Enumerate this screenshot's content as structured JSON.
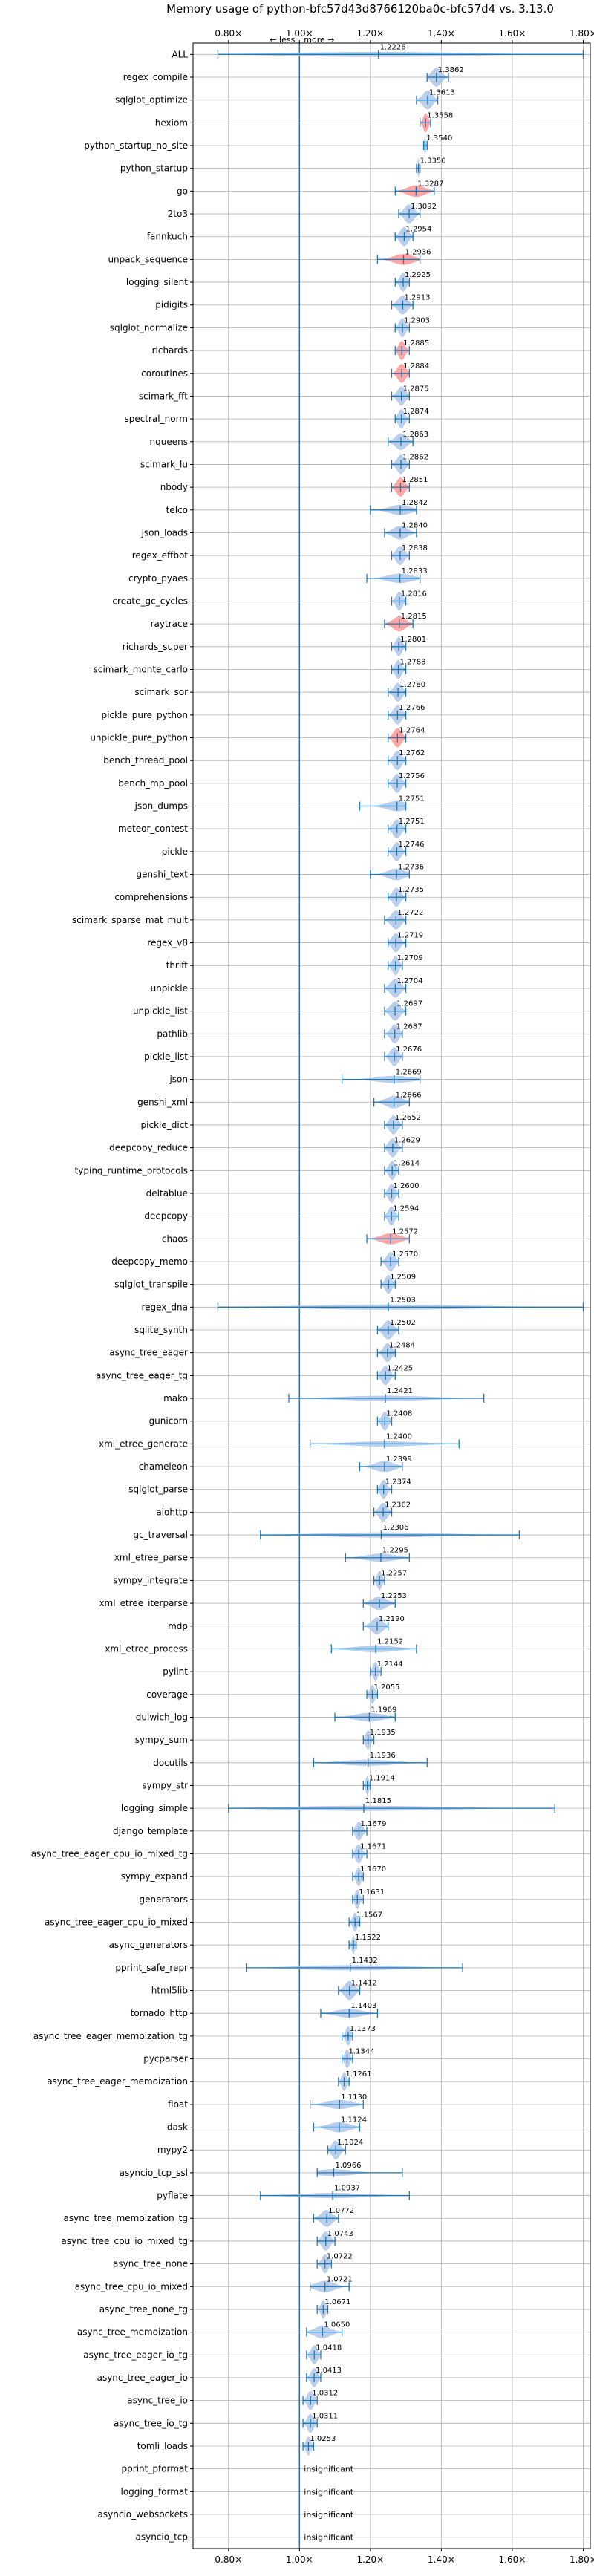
{
  "chart_data": {
    "type": "violin",
    "title": "Memory usage of python-bfc57d43d8766120ba0c-bfc57d4 vs. 3.13.0",
    "direction_labels": {
      "less": "← less",
      "more": "more →"
    },
    "xlim": [
      0.7,
      1.82
    ],
    "xticks": [
      0.8,
      1.0,
      1.2,
      1.4,
      1.6,
      1.8
    ],
    "xtick_labels": [
      "0.80×",
      "1.00×",
      "1.20×",
      "1.40×",
      "1.60×",
      "1.80×"
    ],
    "reference_line": 1.0,
    "grid": true,
    "colors": {
      "faster": "#aec7e8",
      "slower": "#ff9896",
      "line": "#1f77b4"
    },
    "benchmarks": [
      {
        "name": "ALL",
        "value": 1.2226,
        "label": "1.2226",
        "min": 0.77,
        "max": 1.8,
        "color": "blue"
      },
      {
        "name": "regex_compile",
        "value": 1.3862,
        "label": "1.3862",
        "min": 1.36,
        "max": 1.42,
        "color": "blue"
      },
      {
        "name": "sqlglot_optimize",
        "value": 1.3613,
        "label": "1.3613",
        "min": 1.33,
        "max": 1.39,
        "color": "blue"
      },
      {
        "name": "hexiom",
        "value": 1.3558,
        "label": "1.3558",
        "min": 1.34,
        "max": 1.37,
        "color": "red"
      },
      {
        "name": "python_startup_no_site",
        "value": 1.354,
        "label": "1.3540",
        "min": 1.35,
        "max": 1.36,
        "color": "blue"
      },
      {
        "name": "python_startup",
        "value": 1.3356,
        "label": "1.3356",
        "min": 1.33,
        "max": 1.34,
        "color": "blue"
      },
      {
        "name": "go",
        "value": 1.3287,
        "label": "1.3287",
        "min": 1.27,
        "max": 1.38,
        "color": "red"
      },
      {
        "name": "2to3",
        "value": 1.3092,
        "label": "1.3092",
        "min": 1.28,
        "max": 1.34,
        "color": "blue"
      },
      {
        "name": "fannkuch",
        "value": 1.2954,
        "label": "1.2954",
        "min": 1.27,
        "max": 1.32,
        "color": "blue"
      },
      {
        "name": "unpack_sequence",
        "value": 1.2936,
        "label": "1.2936",
        "min": 1.22,
        "max": 1.34,
        "color": "red"
      },
      {
        "name": "logging_silent",
        "value": 1.2925,
        "label": "1.2925",
        "min": 1.27,
        "max": 1.31,
        "color": "blue"
      },
      {
        "name": "pidigits",
        "value": 1.2913,
        "label": "1.2913",
        "min": 1.26,
        "max": 1.32,
        "color": "blue"
      },
      {
        "name": "sqlglot_normalize",
        "value": 1.2903,
        "label": "1.2903",
        "min": 1.27,
        "max": 1.31,
        "color": "blue"
      },
      {
        "name": "richards",
        "value": 1.2885,
        "label": "1.2885",
        "min": 1.27,
        "max": 1.31,
        "color": "red"
      },
      {
        "name": "coroutines",
        "value": 1.2884,
        "label": "1.2884",
        "min": 1.26,
        "max": 1.31,
        "color": "red"
      },
      {
        "name": "scimark_fft",
        "value": 1.2875,
        "label": "1.2875",
        "min": 1.26,
        "max": 1.31,
        "color": "blue"
      },
      {
        "name": "spectral_norm",
        "value": 1.2874,
        "label": "1.2874",
        "min": 1.27,
        "max": 1.31,
        "color": "blue"
      },
      {
        "name": "nqueens",
        "value": 1.2863,
        "label": "1.2863",
        "min": 1.25,
        "max": 1.32,
        "color": "blue"
      },
      {
        "name": "scimark_lu",
        "value": 1.2862,
        "label": "1.2862",
        "min": 1.26,
        "max": 1.31,
        "color": "blue"
      },
      {
        "name": "nbody",
        "value": 1.2851,
        "label": "1.2851",
        "min": 1.26,
        "max": 1.31,
        "color": "red"
      },
      {
        "name": "telco",
        "value": 1.2842,
        "label": "1.2842",
        "min": 1.2,
        "max": 1.33,
        "color": "blue"
      },
      {
        "name": "json_loads",
        "value": 1.284,
        "label": "1.2840",
        "min": 1.24,
        "max": 1.33,
        "color": "blue"
      },
      {
        "name": "regex_effbot",
        "value": 1.2838,
        "label": "1.2838",
        "min": 1.26,
        "max": 1.31,
        "color": "blue"
      },
      {
        "name": "crypto_pyaes",
        "value": 1.2833,
        "label": "1.2833",
        "min": 1.19,
        "max": 1.34,
        "color": "blue"
      },
      {
        "name": "create_gc_cycles",
        "value": 1.2816,
        "label": "1.2816",
        "min": 1.26,
        "max": 1.3,
        "color": "blue"
      },
      {
        "name": "raytrace",
        "value": 1.2815,
        "label": "1.2815",
        "min": 1.24,
        "max": 1.32,
        "color": "red"
      },
      {
        "name": "richards_super",
        "value": 1.2801,
        "label": "1.2801",
        "min": 1.26,
        "max": 1.3,
        "color": "blue"
      },
      {
        "name": "scimark_monte_carlo",
        "value": 1.2788,
        "label": "1.2788",
        "min": 1.26,
        "max": 1.3,
        "color": "blue"
      },
      {
        "name": "scimark_sor",
        "value": 1.278,
        "label": "1.2780",
        "min": 1.25,
        "max": 1.3,
        "color": "blue"
      },
      {
        "name": "pickle_pure_python",
        "value": 1.2766,
        "label": "1.2766",
        "min": 1.25,
        "max": 1.3,
        "color": "blue"
      },
      {
        "name": "unpickle_pure_python",
        "value": 1.2764,
        "label": "1.2764",
        "min": 1.25,
        "max": 1.3,
        "color": "red"
      },
      {
        "name": "bench_thread_pool",
        "value": 1.2762,
        "label": "1.2762",
        "min": 1.25,
        "max": 1.3,
        "color": "blue"
      },
      {
        "name": "bench_mp_pool",
        "value": 1.2756,
        "label": "1.2756",
        "min": 1.25,
        "max": 1.3,
        "color": "blue"
      },
      {
        "name": "json_dumps",
        "value": 1.2751,
        "label": "1.2751",
        "min": 1.17,
        "max": 1.3,
        "color": "blue"
      },
      {
        "name": "meteor_contest",
        "value": 1.2751,
        "label": "1.2751",
        "min": 1.25,
        "max": 1.3,
        "color": "blue"
      },
      {
        "name": "pickle",
        "value": 1.2746,
        "label": "1.2746",
        "min": 1.25,
        "max": 1.3,
        "color": "blue"
      },
      {
        "name": "genshi_text",
        "value": 1.2736,
        "label": "1.2736",
        "min": 1.2,
        "max": 1.31,
        "color": "blue"
      },
      {
        "name": "comprehensions",
        "value": 1.2735,
        "label": "1.2735",
        "min": 1.25,
        "max": 1.3,
        "color": "blue"
      },
      {
        "name": "scimark_sparse_mat_mult",
        "value": 1.2722,
        "label": "1.2722",
        "min": 1.24,
        "max": 1.3,
        "color": "blue"
      },
      {
        "name": "regex_v8",
        "value": 1.2719,
        "label": "1.2719",
        "min": 1.25,
        "max": 1.3,
        "color": "blue"
      },
      {
        "name": "thrift",
        "value": 1.2709,
        "label": "1.2709",
        "min": 1.25,
        "max": 1.29,
        "color": "blue"
      },
      {
        "name": "unpickle",
        "value": 1.2704,
        "label": "1.2704",
        "min": 1.24,
        "max": 1.3,
        "color": "blue"
      },
      {
        "name": "unpickle_list",
        "value": 1.2697,
        "label": "1.2697",
        "min": 1.24,
        "max": 1.3,
        "color": "blue"
      },
      {
        "name": "pathlib",
        "value": 1.2687,
        "label": "1.2687",
        "min": 1.24,
        "max": 1.29,
        "color": "blue"
      },
      {
        "name": "pickle_list",
        "value": 1.2676,
        "label": "1.2676",
        "min": 1.24,
        "max": 1.29,
        "color": "blue"
      },
      {
        "name": "json",
        "value": 1.2669,
        "label": "1.2669",
        "min": 1.12,
        "max": 1.34,
        "color": "blue"
      },
      {
        "name": "genshi_xml",
        "value": 1.2666,
        "label": "1.2666",
        "min": 1.21,
        "max": 1.31,
        "color": "blue"
      },
      {
        "name": "pickle_dict",
        "value": 1.2652,
        "label": "1.2652",
        "min": 1.24,
        "max": 1.29,
        "color": "blue"
      },
      {
        "name": "deepcopy_reduce",
        "value": 1.2629,
        "label": "1.2629",
        "min": 1.24,
        "max": 1.29,
        "color": "blue"
      },
      {
        "name": "typing_runtime_protocols",
        "value": 1.2614,
        "label": "1.2614",
        "min": 1.24,
        "max": 1.28,
        "color": "blue"
      },
      {
        "name": "deltablue",
        "value": 1.26,
        "label": "1.2600",
        "min": 1.24,
        "max": 1.28,
        "color": "blue"
      },
      {
        "name": "deepcopy",
        "value": 1.2594,
        "label": "1.2594",
        "min": 1.24,
        "max": 1.28,
        "color": "blue"
      },
      {
        "name": "chaos",
        "value": 1.2572,
        "label": "1.2572",
        "min": 1.19,
        "max": 1.31,
        "color": "red"
      },
      {
        "name": "deepcopy_memo",
        "value": 1.257,
        "label": "1.2570",
        "min": 1.23,
        "max": 1.28,
        "color": "blue"
      },
      {
        "name": "sqlglot_transpile",
        "value": 1.2509,
        "label": "1.2509",
        "min": 1.23,
        "max": 1.27,
        "color": "blue"
      },
      {
        "name": "regex_dna",
        "value": 1.2503,
        "label": "1.2503",
        "min": 0.77,
        "max": 1.8,
        "color": "blue"
      },
      {
        "name": "sqlite_synth",
        "value": 1.2502,
        "label": "1.2502",
        "min": 1.22,
        "max": 1.28,
        "color": "blue"
      },
      {
        "name": "async_tree_eager",
        "value": 1.2484,
        "label": "1.2484",
        "min": 1.22,
        "max": 1.27,
        "color": "blue"
      },
      {
        "name": "async_tree_eager_tg",
        "value": 1.2425,
        "label": "1.2425",
        "min": 1.22,
        "max": 1.27,
        "color": "blue"
      },
      {
        "name": "mako",
        "value": 1.2421,
        "label": "1.2421",
        "min": 0.97,
        "max": 1.52,
        "color": "blue"
      },
      {
        "name": "gunicorn",
        "value": 1.2408,
        "label": "1.2408",
        "min": 1.22,
        "max": 1.26,
        "color": "blue"
      },
      {
        "name": "xml_etree_generate",
        "value": 1.24,
        "label": "1.2400",
        "min": 1.03,
        "max": 1.45,
        "color": "blue"
      },
      {
        "name": "chameleon",
        "value": 1.2399,
        "label": "1.2399",
        "min": 1.17,
        "max": 1.29,
        "color": "blue"
      },
      {
        "name": "sqlglot_parse",
        "value": 1.2374,
        "label": "1.2374",
        "min": 1.22,
        "max": 1.26,
        "color": "blue"
      },
      {
        "name": "aiohttp",
        "value": 1.2362,
        "label": "1.2362",
        "min": 1.21,
        "max": 1.26,
        "color": "blue"
      },
      {
        "name": "gc_traversal",
        "value": 1.2306,
        "label": "1.2306",
        "min": 0.89,
        "max": 1.62,
        "color": "blue"
      },
      {
        "name": "xml_etree_parse",
        "value": 1.2295,
        "label": "1.2295",
        "min": 1.13,
        "max": 1.31,
        "color": "blue"
      },
      {
        "name": "sympy_integrate",
        "value": 1.2257,
        "label": "1.2257",
        "min": 1.21,
        "max": 1.24,
        "color": "blue"
      },
      {
        "name": "xml_etree_iterparse",
        "value": 1.2253,
        "label": "1.2253",
        "min": 1.18,
        "max": 1.27,
        "color": "blue"
      },
      {
        "name": "mdp",
        "value": 1.219,
        "label": "1.2190",
        "min": 1.18,
        "max": 1.25,
        "color": "blue"
      },
      {
        "name": "xml_etree_process",
        "value": 1.2152,
        "label": "1.2152",
        "min": 1.09,
        "max": 1.33,
        "color": "blue"
      },
      {
        "name": "pylint",
        "value": 1.2144,
        "label": "1.2144",
        "min": 1.2,
        "max": 1.23,
        "color": "blue"
      },
      {
        "name": "coverage",
        "value": 1.2055,
        "label": "1.2055",
        "min": 1.19,
        "max": 1.22,
        "color": "blue"
      },
      {
        "name": "dulwich_log",
        "value": 1.1969,
        "label": "1.1969",
        "min": 1.1,
        "max": 1.27,
        "color": "blue"
      },
      {
        "name": "sympy_sum",
        "value": 1.1935,
        "label": "1.1935",
        "min": 1.18,
        "max": 1.21,
        "color": "blue"
      },
      {
        "name": "docutils",
        "value": 1.1936,
        "label": "1.1936",
        "min": 1.04,
        "max": 1.36,
        "color": "blue"
      },
      {
        "name": "sympy_str",
        "value": 1.1914,
        "label": "1.1914",
        "min": 1.18,
        "max": 1.2,
        "color": "blue"
      },
      {
        "name": "logging_simple",
        "value": 1.1815,
        "label": "1.1815",
        "min": 0.8,
        "max": 1.72,
        "color": "blue"
      },
      {
        "name": "django_template",
        "value": 1.1679,
        "label": "1.1679",
        "min": 1.15,
        "max": 1.19,
        "color": "blue"
      },
      {
        "name": "async_tree_eager_cpu_io_mixed_tg",
        "value": 1.1671,
        "label": "1.1671",
        "min": 1.15,
        "max": 1.19,
        "color": "blue"
      },
      {
        "name": "sympy_expand",
        "value": 1.167,
        "label": "1.1670",
        "min": 1.15,
        "max": 1.18,
        "color": "blue"
      },
      {
        "name": "generators",
        "value": 1.1631,
        "label": "1.1631",
        "min": 1.15,
        "max": 1.18,
        "color": "blue"
      },
      {
        "name": "async_tree_eager_cpu_io_mixed",
        "value": 1.1567,
        "label": "1.1567",
        "min": 1.14,
        "max": 1.17,
        "color": "blue"
      },
      {
        "name": "async_generators",
        "value": 1.1522,
        "label": "1.1522",
        "min": 1.14,
        "max": 1.16,
        "color": "blue"
      },
      {
        "name": "pprint_safe_repr",
        "value": 1.1432,
        "label": "1.1432",
        "min": 0.85,
        "max": 1.46,
        "color": "blue"
      },
      {
        "name": "html5lib",
        "value": 1.1412,
        "label": "1.1412",
        "min": 1.11,
        "max": 1.17,
        "color": "blue"
      },
      {
        "name": "tornado_http",
        "value": 1.1403,
        "label": "1.1403",
        "min": 1.06,
        "max": 1.22,
        "color": "blue"
      },
      {
        "name": "async_tree_eager_memoization_tg",
        "value": 1.1373,
        "label": "1.1373",
        "min": 1.12,
        "max": 1.15,
        "color": "blue"
      },
      {
        "name": "pycparser",
        "value": 1.1344,
        "label": "1.1344",
        "min": 1.12,
        "max": 1.15,
        "color": "blue"
      },
      {
        "name": "async_tree_eager_memoization",
        "value": 1.1261,
        "label": "1.1261",
        "min": 1.11,
        "max": 1.14,
        "color": "blue"
      },
      {
        "name": "float",
        "value": 1.113,
        "label": "1.1130",
        "min": 1.03,
        "max": 1.18,
        "color": "blue"
      },
      {
        "name": "dask",
        "value": 1.1124,
        "label": "1.1124",
        "min": 1.04,
        "max": 1.17,
        "color": "blue"
      },
      {
        "name": "mypy2",
        "value": 1.1024,
        "label": "1.1024",
        "min": 1.08,
        "max": 1.13,
        "color": "blue"
      },
      {
        "name": "asyncio_tcp_ssl",
        "value": 1.0966,
        "label": "1.0966",
        "min": 1.05,
        "max": 1.29,
        "color": "blue"
      },
      {
        "name": "pyflate",
        "value": 1.0937,
        "label": "1.0937",
        "min": 0.89,
        "max": 1.31,
        "color": "blue"
      },
      {
        "name": "async_tree_memoization_tg",
        "value": 1.0772,
        "label": "1.0772",
        "min": 1.04,
        "max": 1.11,
        "color": "blue"
      },
      {
        "name": "async_tree_cpu_io_mixed_tg",
        "value": 1.0743,
        "label": "1.0743",
        "min": 1.05,
        "max": 1.1,
        "color": "blue"
      },
      {
        "name": "async_tree_none",
        "value": 1.0722,
        "label": "1.0722",
        "min": 1.05,
        "max": 1.09,
        "color": "blue"
      },
      {
        "name": "async_tree_cpu_io_mixed",
        "value": 1.0721,
        "label": "1.0721",
        "min": 1.03,
        "max": 1.14,
        "color": "blue"
      },
      {
        "name": "async_tree_none_tg",
        "value": 1.0671,
        "label": "1.0671",
        "min": 1.05,
        "max": 1.08,
        "color": "blue"
      },
      {
        "name": "async_tree_memoization",
        "value": 1.065,
        "label": "1.0650",
        "min": 1.02,
        "max": 1.12,
        "color": "blue"
      },
      {
        "name": "async_tree_eager_io_tg",
        "value": 1.0418,
        "label": "1.0418",
        "min": 1.02,
        "max": 1.06,
        "color": "blue"
      },
      {
        "name": "async_tree_eager_io",
        "value": 1.0413,
        "label": "1.0413",
        "min": 1.02,
        "max": 1.06,
        "color": "blue"
      },
      {
        "name": "async_tree_io",
        "value": 1.0312,
        "label": "1.0312",
        "min": 1.01,
        "max": 1.05,
        "color": "blue"
      },
      {
        "name": "async_tree_io_tg",
        "value": 1.0311,
        "label": "1.0311",
        "min": 1.01,
        "max": 1.05,
        "color": "blue"
      },
      {
        "name": "tomli_loads",
        "value": 1.0253,
        "label": "1.0253",
        "min": 1.01,
        "max": 1.04,
        "color": "blue"
      },
      {
        "name": "pprint_pformat",
        "value": null,
        "label": "insignificant"
      },
      {
        "name": "logging_format",
        "value": null,
        "label": "insignificant"
      },
      {
        "name": "asyncio_websockets",
        "value": null,
        "label": "insignificant"
      },
      {
        "name": "asyncio_tcp",
        "value": null,
        "label": "insignificant"
      }
    ]
  }
}
